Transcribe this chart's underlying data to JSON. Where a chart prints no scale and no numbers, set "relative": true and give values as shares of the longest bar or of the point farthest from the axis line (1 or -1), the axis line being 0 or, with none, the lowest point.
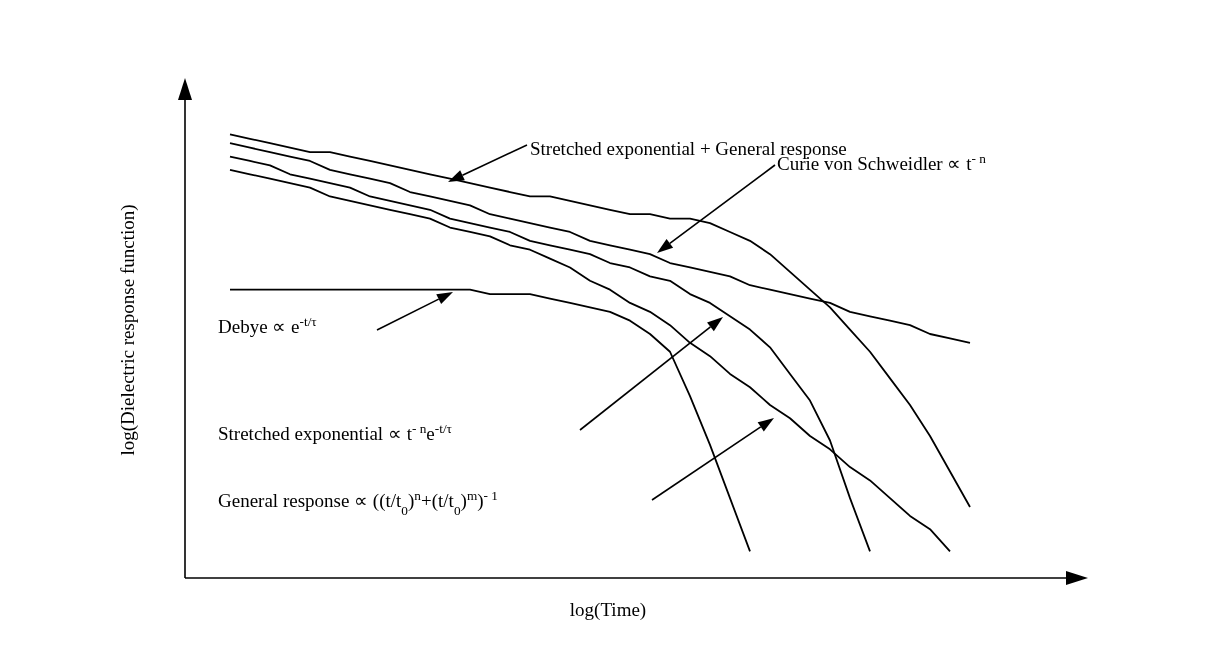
{
  "chart_data": {
    "type": "line",
    "xlabel": "log(Time)",
    "ylabel": "log(Dielectric response function)",
    "relative": true,
    "marker": "none",
    "line_style": "solid",
    "categories": [
      null,
      null,
      null,
      null,
      null,
      null,
      null,
      null,
      null,
      null,
      null,
      null,
      null,
      null,
      null,
      null,
      null,
      null,
      null,
      null,
      null,
      null,
      null,
      null,
      null,
      null,
      null,
      null,
      null,
      null,
      null,
      null,
      null,
      null,
      null,
      null,
      null,
      null
    ],
    "annotations": [
      "Stretched exponential + General response",
      "Curie von Schweidler ∝ t$^{- n}$",
      "Debye ∝ e$^{-t/τ}$",
      "Stretched exponential ∝ t$^{- n}$e$^{-t/τ}$",
      "General response ∝ ((t/t$_{0}$)$^{n}$+(t/t$_{0}$)$^{m}$)$^{- 1}$"
    ],
    "series": [
      {
        "color": "#000000",
        "values": [
          1.0,
          0.99,
          0.98,
          0.97,
          0.96,
          0.96,
          0.95,
          0.94,
          0.93,
          0.92,
          0.91,
          0.9,
          0.89,
          0.88,
          0.87,
          0.86,
          0.86,
          0.85,
          0.84,
          0.83,
          0.82,
          0.82,
          0.81,
          0.81,
          0.8,
          0.78,
          0.76,
          0.73,
          0.69,
          0.65,
          0.61,
          0.56,
          0.51,
          0.45,
          0.39,
          0.32,
          0.24,
          0.16
        ]
      },
      {
        "color": "#000000",
        "values": [
          0.98,
          0.97,
          0.96,
          0.95,
          0.94,
          0.92,
          0.91,
          0.9,
          0.89,
          0.87,
          0.86,
          0.85,
          0.84,
          0.82,
          0.81,
          0.8,
          0.79,
          0.78,
          0.76,
          0.75,
          0.74,
          0.73,
          0.71,
          0.7,
          0.69,
          0.68,
          0.66,
          0.65,
          0.64,
          0.63,
          0.62,
          0.6,
          0.59,
          0.58,
          0.57,
          0.55,
          0.54,
          0.53
        ]
      },
      {
        "color": "#000000",
        "values": [
          0.95,
          0.94,
          0.93,
          0.91,
          0.9,
          0.89,
          0.88,
          0.86,
          0.85,
          0.84,
          0.83,
          0.81,
          0.8,
          0.79,
          0.78,
          0.76,
          0.75,
          0.74,
          0.73,
          0.71,
          0.7,
          0.68,
          0.67,
          0.64,
          0.62,
          0.59,
          0.56,
          0.52,
          0.46,
          0.4,
          0.31,
          0.18,
          0.06,
          null,
          null,
          null,
          null,
          null
        ]
      },
      {
        "color": "#000000",
        "values": [
          0.92,
          0.91,
          0.9,
          0.89,
          0.88,
          0.86,
          0.85,
          0.84,
          0.83,
          0.82,
          0.81,
          0.79,
          0.78,
          0.77,
          0.75,
          0.74,
          0.72,
          0.7,
          0.67,
          0.65,
          0.62,
          0.6,
          0.57,
          0.53,
          0.5,
          0.46,
          0.43,
          0.39,
          0.36,
          0.32,
          0.29,
          0.25,
          0.22,
          0.18,
          0.14,
          0.11,
          0.06,
          null
        ]
      },
      {
        "color": "#000000",
        "values": [
          0.65,
          0.65,
          0.65,
          0.65,
          0.65,
          0.65,
          0.65,
          0.65,
          0.65,
          0.65,
          0.65,
          0.65,
          0.65,
          0.64,
          0.64,
          0.64,
          0.63,
          0.62,
          0.61,
          0.6,
          0.58,
          0.55,
          0.51,
          0.41,
          0.3,
          0.18,
          0.06,
          null,
          null,
          null,
          null,
          null,
          null,
          null,
          null,
          null,
          null,
          null
        ]
      }
    ]
  }
}
